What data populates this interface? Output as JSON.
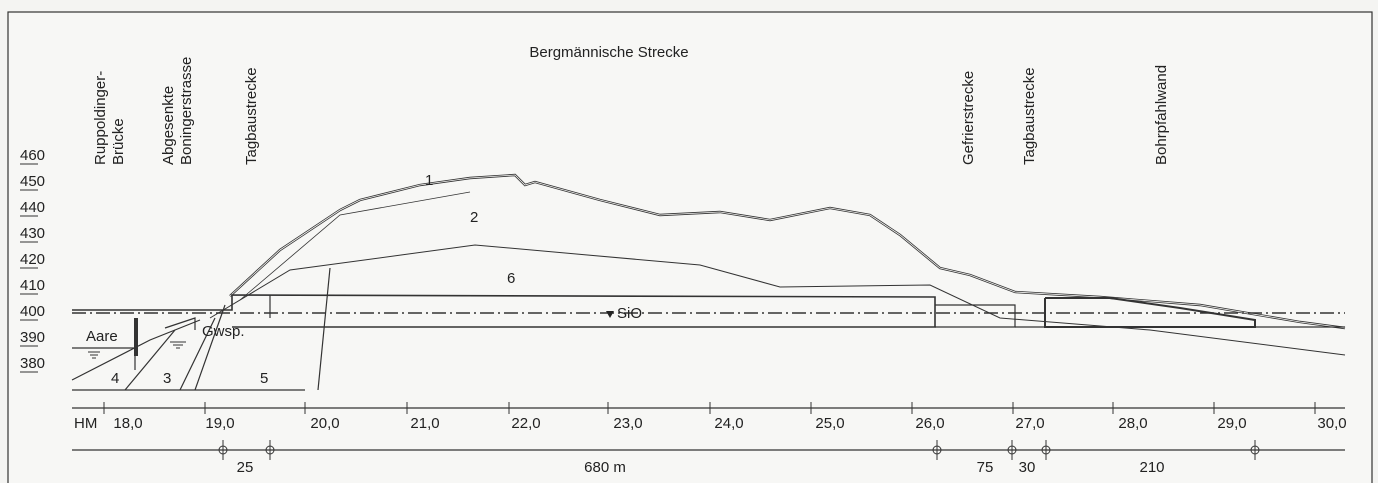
{
  "elevation_labels": [
    "460",
    "450",
    "440",
    "430",
    "420",
    "410",
    "400",
    "390",
    "380"
  ],
  "section_labels": [
    "Ruppoldinger-",
    "Brücke",
    "Abgesenkte",
    "Boningerstrasse",
    "Tagbaustrecke",
    "Gefrierstrecke",
    "Tagbaustrecke",
    "Bohrpfahlwand"
  ],
  "title": "Bergmännische Strecke",
  "zone_labels": [
    "1",
    "2",
    "6",
    "5",
    "4",
    "3"
  ],
  "feature_labels": [
    "Aare",
    "Gwsp.",
    "SiO"
  ],
  "hm_label": "HM",
  "hm_ticks": [
    "18,0",
    "19,0",
    "20,0",
    "21,0",
    "22,0",
    "23,0",
    "24,0",
    "25,0",
    "26,0",
    "27,0",
    "28,0",
    "29,0",
    "30,0"
  ],
  "lengths": [
    "25",
    "680 m",
    "75",
    "30",
    "210"
  ]
}
